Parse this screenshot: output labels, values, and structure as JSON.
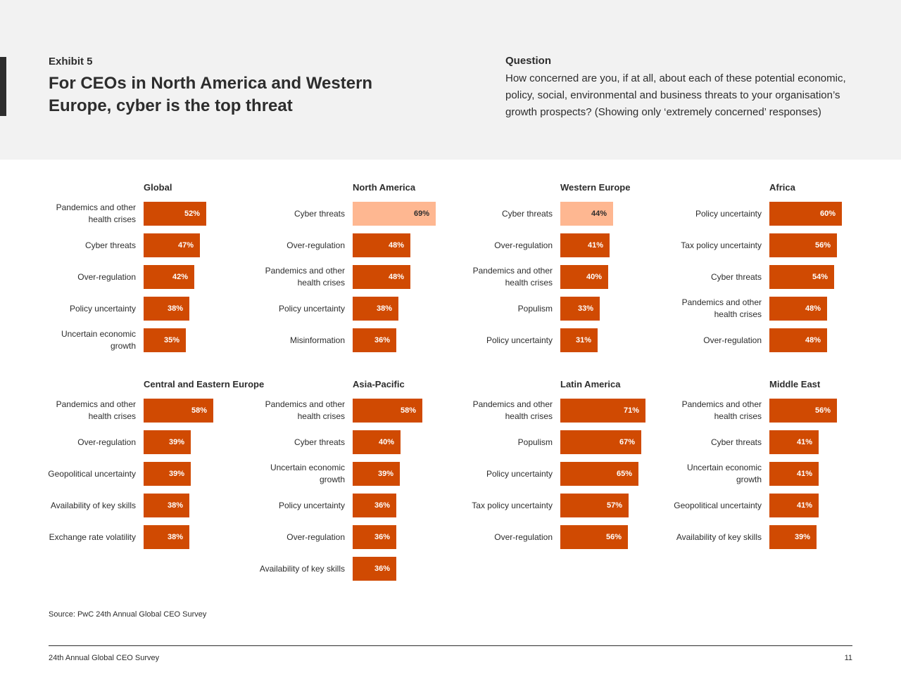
{
  "header": {
    "exhibit_label": "Exhibit 5",
    "title": "For CEOs in North America and Western Europe, cyber is the top threat",
    "question_heading": "Question",
    "question_text": "How concerned are you, if at all, about each of these potential economic, policy, social, environmental and business threats to your organisation’s growth prospects? (Showing only ‘extremely concerned’ responses)"
  },
  "colors": {
    "bar": "#d04a02",
    "highlight_bar": "#feb791",
    "header_background": "#f2f2f2",
    "text": "#2d2d2d"
  },
  "chart_data": [
    {
      "type": "bar",
      "orientation": "horizontal",
      "title": "Global",
      "categories": [
        "Pandemics and other health crises",
        "Cyber threats",
        "Over-regulation",
        "Policy uncertainty",
        "Uncertain economic growth"
      ],
      "values": [
        52,
        47,
        42,
        38,
        35
      ],
      "value_labels": [
        "52%",
        "47%",
        "42%",
        "38%",
        "35%"
      ],
      "highlight": []
    },
    {
      "type": "bar",
      "orientation": "horizontal",
      "title": "North America",
      "categories": [
        "Cyber threats",
        "Over-regulation",
        "Pandemics and other health crises",
        "Policy uncertainty",
        "Misinformation"
      ],
      "values": [
        69,
        48,
        48,
        38,
        36
      ],
      "value_labels": [
        "69%",
        "48%",
        "48%",
        "38%",
        "36%"
      ],
      "highlight": [
        "Cyber threats"
      ]
    },
    {
      "type": "bar",
      "orientation": "horizontal",
      "title": "Western Europe",
      "categories": [
        "Cyber threats",
        "Over-regulation",
        "Pandemics and other health crises",
        "Populism",
        "Policy uncertainty"
      ],
      "values": [
        44,
        41,
        40,
        33,
        31
      ],
      "value_labels": [
        "44%",
        "41%",
        "40%",
        "33%",
        "31%"
      ],
      "highlight": [
        "Cyber threats"
      ]
    },
    {
      "type": "bar",
      "orientation": "horizontal",
      "title": "Africa",
      "categories": [
        "Policy uncertainty",
        "Tax policy uncertainty",
        "Cyber threats",
        "Pandemics and other health crises",
        "Over-regulation"
      ],
      "values": [
        60,
        56,
        54,
        48,
        48
      ],
      "value_labels": [
        "60%",
        "56%",
        "54%",
        "48%",
        "48%"
      ],
      "highlight": []
    },
    {
      "type": "bar",
      "orientation": "horizontal",
      "title": "Central and Eastern Europe",
      "categories": [
        "Pandemics and other health crises",
        "Over-regulation",
        "Geopolitical uncertainty",
        "Availability of key skills",
        "Exchange rate volatility"
      ],
      "values": [
        58,
        39,
        39,
        38,
        38
      ],
      "value_labels": [
        "58%",
        "39%",
        "39%",
        "38%",
        "38%"
      ],
      "highlight": []
    },
    {
      "type": "bar",
      "orientation": "horizontal",
      "title": "Asia-Pacific",
      "categories": [
        "Pandemics and other health crises",
        "Cyber threats",
        "Uncertain economic growth",
        "Policy uncertainty",
        "Over-regulation",
        "Availability of key skills"
      ],
      "values": [
        58,
        40,
        39,
        36,
        36,
        36
      ],
      "value_labels": [
        "58%",
        "40%",
        "39%",
        "36%",
        "36%",
        "36%"
      ],
      "highlight": []
    },
    {
      "type": "bar",
      "orientation": "horizontal",
      "title": "Latin America",
      "categories": [
        "Pandemics and other health crises",
        "Populism",
        "Policy uncertainty",
        "Tax policy uncertainty",
        "Over-regulation"
      ],
      "values": [
        71,
        67,
        65,
        57,
        56
      ],
      "value_labels": [
        "71%",
        "67%",
        "65%",
        "57%",
        "56%"
      ],
      "highlight": []
    },
    {
      "type": "bar",
      "orientation": "horizontal",
      "title": "Middle East",
      "categories": [
        "Pandemics and other health crises",
        "Cyber threats",
        "Uncertain economic growth",
        "Geopolitical uncertainty",
        "Availability of key skills"
      ],
      "values": [
        56,
        41,
        41,
        41,
        39
      ],
      "value_labels": [
        "56%",
        "41%",
        "41%",
        "41%",
        "39%"
      ],
      "highlight": []
    }
  ],
  "footer": {
    "source": "Source: PwC 24th Annual Global CEO Survey",
    "report_title": "24th Annual Global CEO Survey",
    "page_number": "11"
  }
}
